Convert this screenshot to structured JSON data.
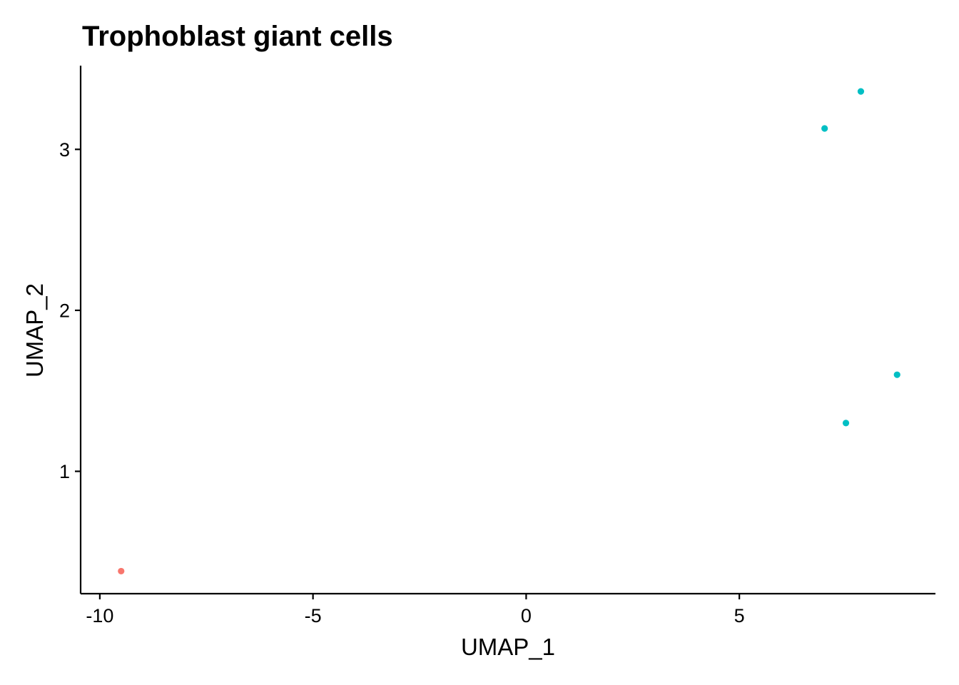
{
  "chart_data": {
    "type": "scatter",
    "title": "Trophoblast giant cells",
    "xlabel": "UMAP_1",
    "ylabel": "UMAP_2",
    "xlim": [
      -10.45,
      9.6
    ],
    "ylim": [
      0.24,
      3.52
    ],
    "x_ticks": [
      -10,
      -5,
      0,
      5
    ],
    "x_tick_labels": [
      "-10",
      "-5",
      "0",
      "5"
    ],
    "y_ticks": [
      1,
      2,
      3
    ],
    "y_tick_labels": [
      "1",
      "2",
      "3"
    ],
    "grid": false,
    "legend": "none",
    "groups": [
      {
        "color": "#F8766D",
        "points": [
          {
            "x": -9.5,
            "y": 0.38
          }
        ]
      },
      {
        "color": "#00BFC4",
        "points": [
          {
            "x": 7.85,
            "y": 3.36
          },
          {
            "x": 7.0,
            "y": 3.13
          },
          {
            "x": 8.7,
            "y": 1.6
          },
          {
            "x": 7.5,
            "y": 1.3
          }
        ]
      }
    ]
  }
}
